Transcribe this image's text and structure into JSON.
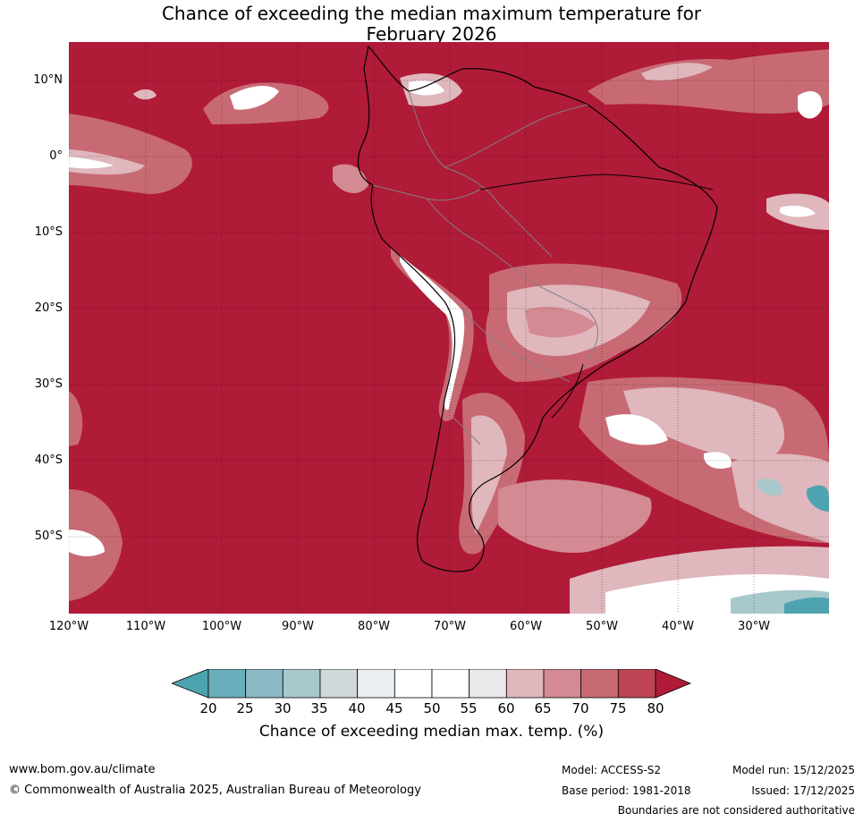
{
  "title_line1": "Chance of exceeding the median maximum temperature for",
  "title_line2": "February 2026",
  "lat_labels": [
    "10°N",
    "0°",
    "10°S",
    "20°S",
    "30°S",
    "40°S",
    "50°S"
  ],
  "lon_labels": [
    "120°W",
    "110°W",
    "100°W",
    "90°W",
    "80°W",
    "70°W",
    "60°W",
    "50°W",
    "40°W",
    "30°W"
  ],
  "colorbar": {
    "ticks": [
      "20",
      "25",
      "30",
      "35",
      "40",
      "45",
      "50",
      "55",
      "60",
      "65",
      "70",
      "75",
      "80"
    ],
    "colors": [
      "#4ea3b0",
      "#6aaebb",
      "#8bb9c5",
      "#a9c8cc",
      "#d1d8da",
      "#e9eef1",
      "#ffffff",
      "#ffffff",
      "#ebe8e9",
      "#dfb7bd",
      "#d38a92",
      "#c86a74",
      "#bf4453",
      "#b01b38"
    ],
    "label": "Chance of exceeding median max. temp. (%)"
  },
  "map_colors": {
    "dominant": "#b01b38",
    "level_75": "#bf4453",
    "level_70": "#c86a74",
    "level_65": "#d38a92",
    "level_60": "#dfb7bd",
    "level_50": "#ffffff",
    "level_40": "#d1d8da",
    "level_25": "#4ea3b0"
  },
  "footer": {
    "website": "www.bom.gov.au/climate",
    "copyright": "© Commonwealth of Australia 2025, Australian Bureau of Meteorology",
    "model": "Model: ACCESS-S2",
    "base_period": "Base period: 1981-2018",
    "model_run": "Model run: 15/12/2025",
    "issued": "Issued: 17/12/2025",
    "disclaimer": "Boundaries are not considered authoritative"
  }
}
